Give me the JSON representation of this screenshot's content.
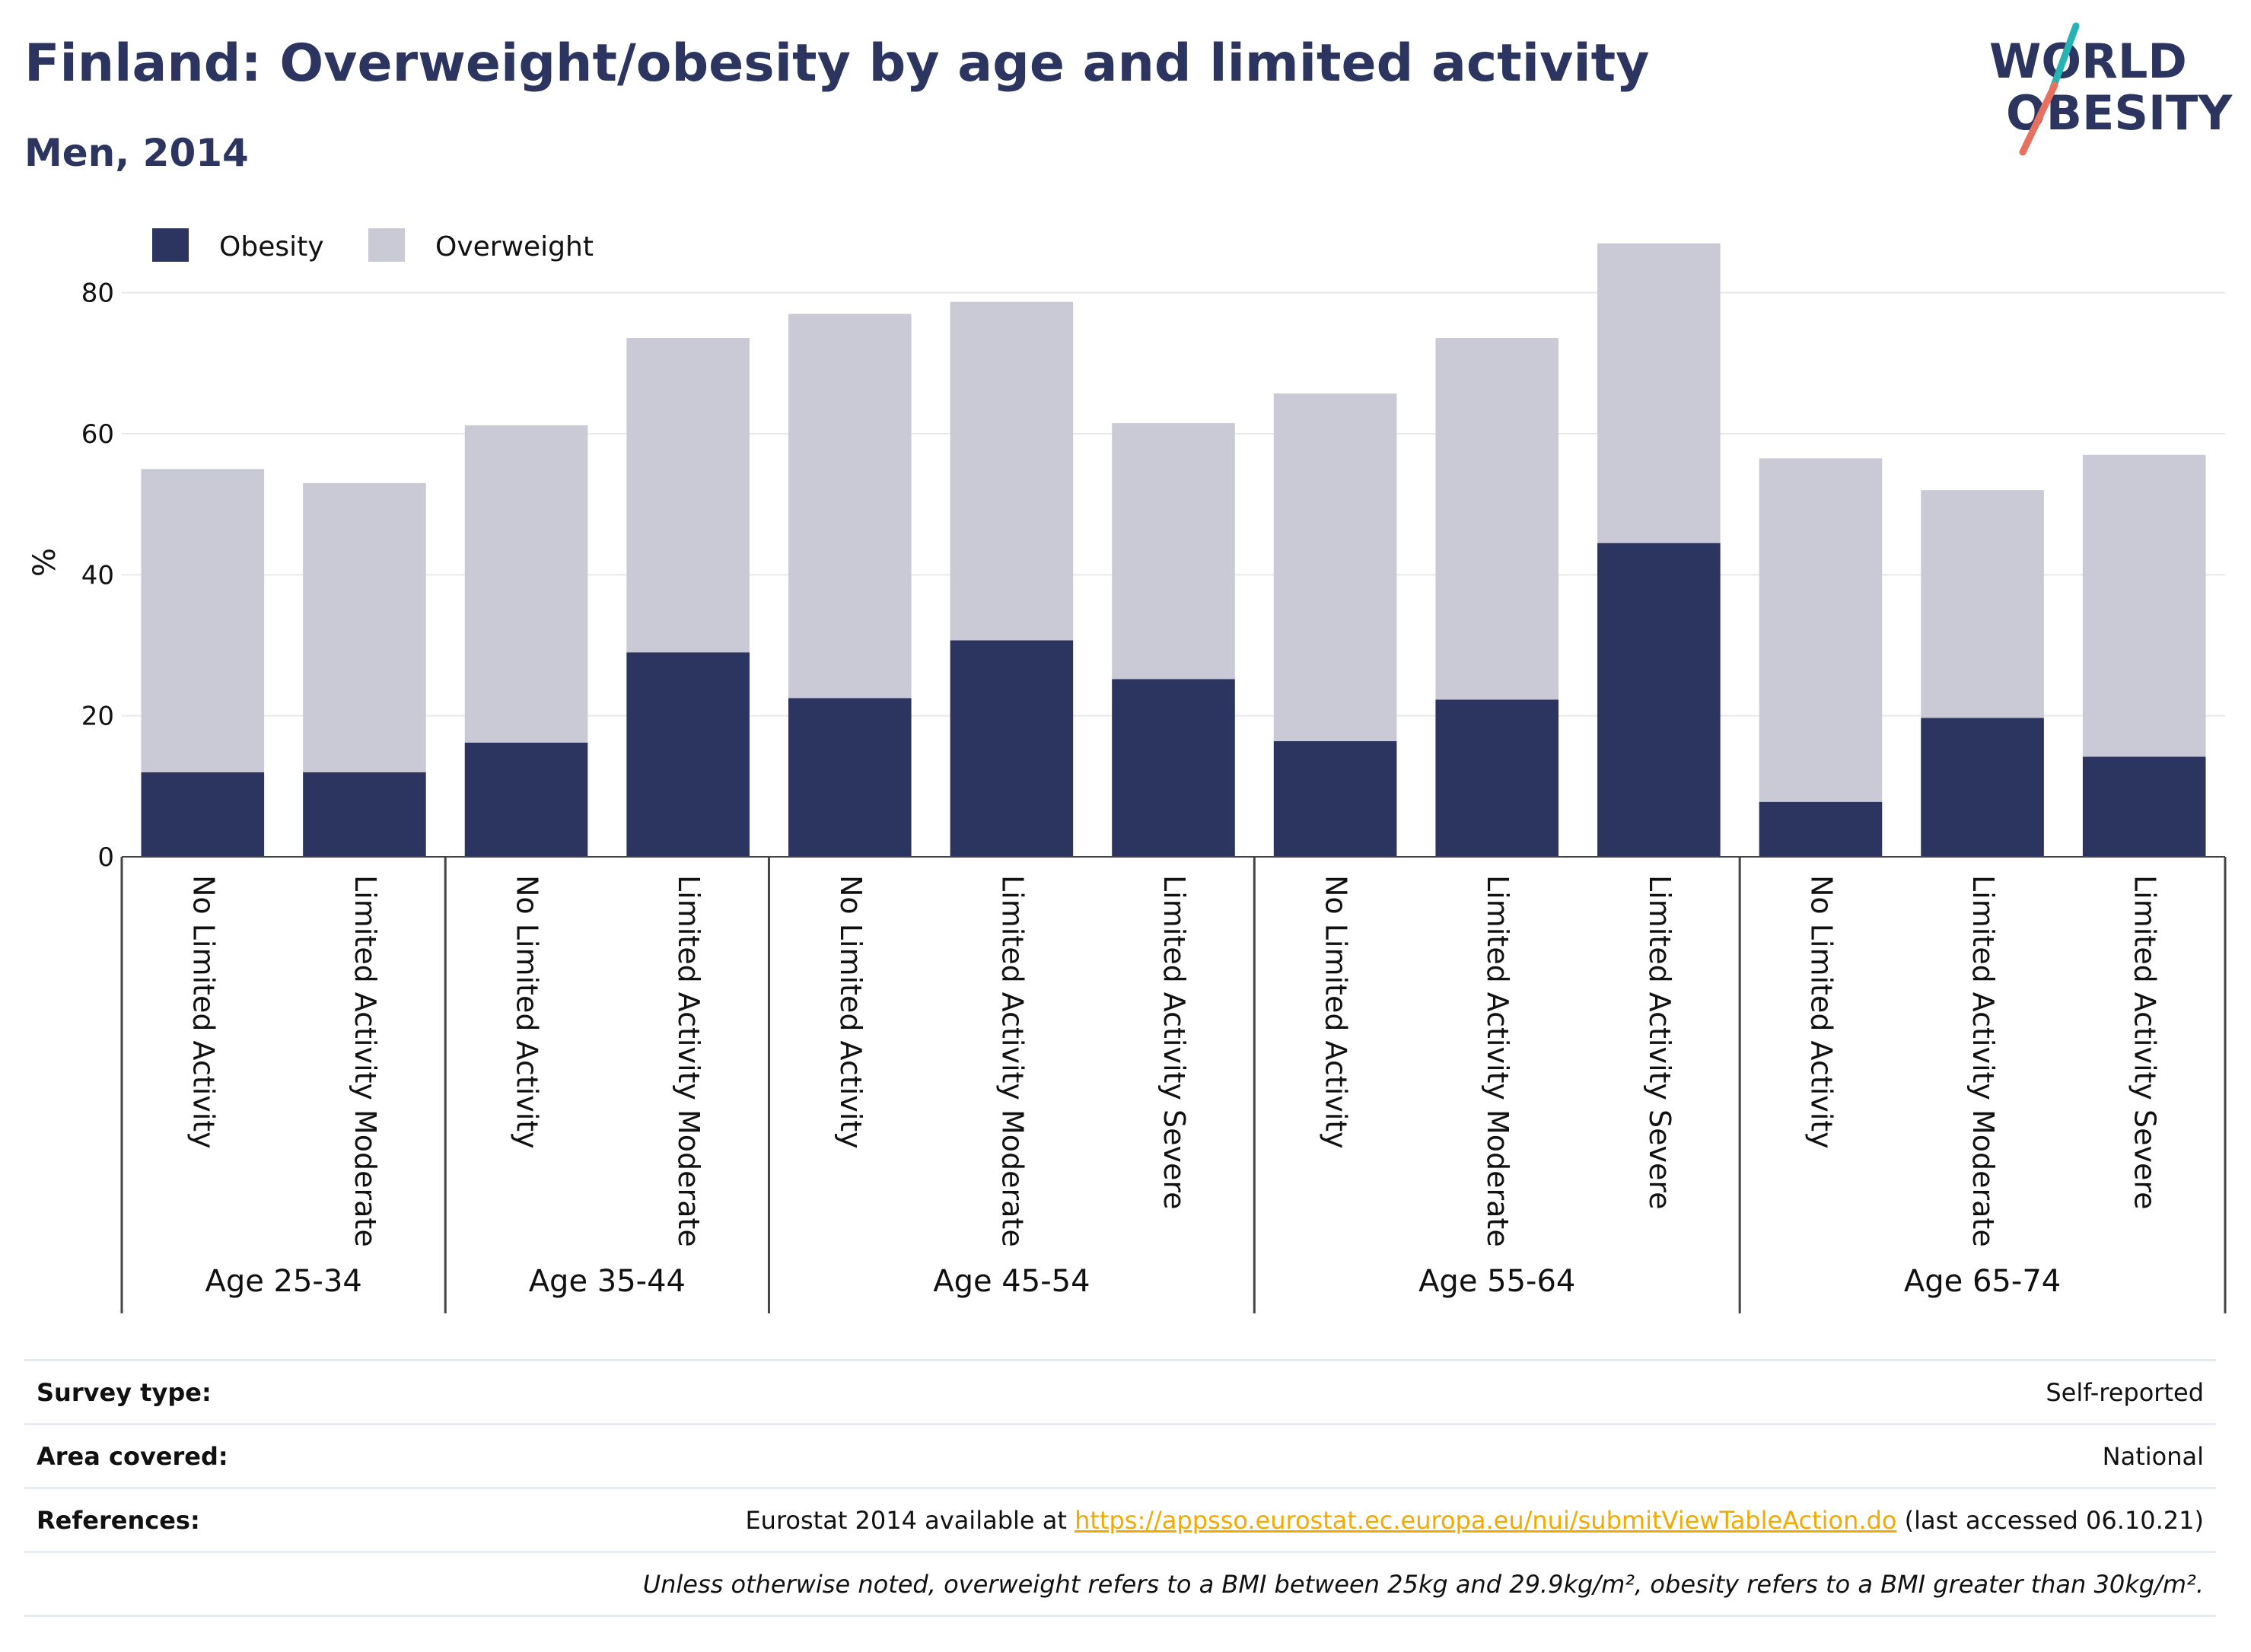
{
  "title": "Finland: Overweight/obesity by age and limited activity",
  "subtitle": "Men, 2014",
  "logo": {
    "line1": "WORLD",
    "line2": "OBESITY",
    "name": "world-obesity-logo"
  },
  "chart_data": {
    "type": "bar",
    "stacked": true,
    "ylabel": "%",
    "ylim": [
      0,
      90
    ],
    "yticks": [
      0,
      20,
      40,
      60,
      80
    ],
    "grid": true,
    "legend_position": "top-left",
    "groups": [
      {
        "label": "Age 25-34",
        "count": 2
      },
      {
        "label": "Age 35-44",
        "count": 2
      },
      {
        "label": "Age 45-54",
        "count": 3
      },
      {
        "label": "Age 55-64",
        "count": 3
      },
      {
        "label": "Age 65-74",
        "count": 3
      }
    ],
    "categories": [
      "No Limited Activity",
      "Limited Activity Moderate",
      "No Limited Activity",
      "Limited Activity Moderate",
      "No Limited Activity",
      "Limited Activity Moderate",
      "Limited Activity Severe",
      "No Limited Activity",
      "Limited Activity Moderate",
      "Limited Activity Severe",
      "No Limited Activity",
      "Limited Activity Moderate",
      "Limited Activity Severe"
    ],
    "series": [
      {
        "name": "Obesity",
        "color": "#2b3560",
        "values": [
          12,
          12,
          16.2,
          29,
          22.5,
          30.7,
          25.2,
          16.4,
          22.3,
          44.5,
          7.8,
          19.7,
          14.2
        ]
      },
      {
        "name": "Overweight",
        "color": "#c9cad6",
        "values": [
          43,
          41,
          45,
          44.6,
          54.5,
          48,
          36.3,
          49.3,
          51.3,
          42.5,
          48.7,
          32.3,
          42.8
        ]
      }
    ]
  },
  "info": {
    "survey_type": {
      "label": "Survey type:",
      "value": "Self-reported"
    },
    "area_covered": {
      "label": "Area covered:",
      "value": "National"
    },
    "references": {
      "label": "References:",
      "prefix": "Eurostat 2014 available at ",
      "link": "https://appsso.eurostat.ec.europa.eu/nui/submitViewTableAction.do",
      "suffix": " (last accessed 06.10.21)"
    },
    "note": "Unless otherwise noted, overweight refers to a BMI between 25kg and 29.9kg/m², obesity refers to a BMI greater than 30kg/m²."
  }
}
